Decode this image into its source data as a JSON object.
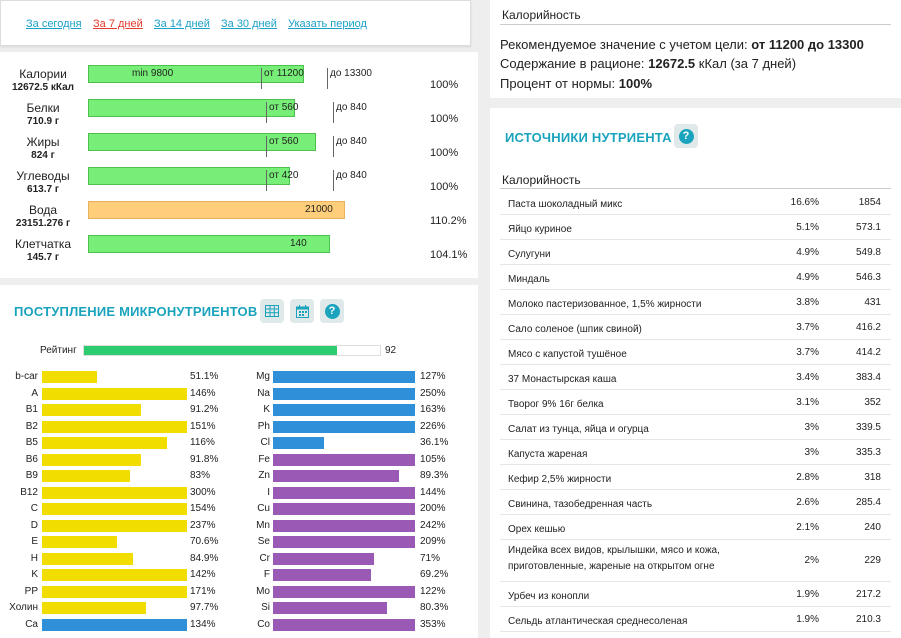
{
  "period": {
    "tabs": [
      {
        "label": "За сегодня",
        "active": false
      },
      {
        "label": "За 7 дней",
        "active": true
      },
      {
        "label": "За 14 дней",
        "active": false
      },
      {
        "label": "За 30 дней",
        "active": false
      },
      {
        "label": "Указать период",
        "active": false
      }
    ]
  },
  "macros": [
    {
      "name": "Калории",
      "value": "12672.5 кКал",
      "labels": [
        "min 9800",
        "от 11200",
        "до 13300"
      ],
      "pct": "100%",
      "fill_ratio": 0.74,
      "color": "#77ee77"
    },
    {
      "name": "Белки",
      "value": "710.9 г",
      "labels": [
        "от 560",
        "до 840"
      ],
      "pct": "100%",
      "fill_ratio": 0.71,
      "color": "#77ee77"
    },
    {
      "name": "Жиры",
      "value": "824 г",
      "labels": [
        "от 560",
        "до 840"
      ],
      "pct": "100%",
      "fill_ratio": 0.78,
      "color": "#77ee77"
    },
    {
      "name": "Углеводы",
      "value": "613.7 г",
      "labels": [
        "от 420",
        "до 840"
      ],
      "pct": "100%",
      "fill_ratio": 0.69,
      "color": "#77ee77"
    },
    {
      "name": "Вода",
      "value": "23151.276 г",
      "labels": [
        "21000"
      ],
      "pct": "110.2%",
      "fill_ratio": 0.88,
      "color": "#ffce7a"
    },
    {
      "name": "Клетчатка",
      "value": "145.7 г",
      "labels": [
        "140"
      ],
      "pct": "104.1%",
      "fill_ratio": 0.83,
      "color": "#77ee77"
    }
  ],
  "micro": {
    "title": "ПОСТУПЛЕНИЕ МИКРОНУТРИЕНТОВ",
    "icons": [
      "table-icon",
      "calendar-icon",
      "help-icon"
    ],
    "rating": {
      "label": "Рейтинг",
      "value": "92",
      "fraction": 0.92
    },
    "left": [
      {
        "name": "b-car",
        "pct": "51.1%",
        "fraction": 0.38,
        "color": "#f2dd00"
      },
      {
        "name": "A",
        "pct": "146%",
        "fraction": 1.0,
        "color": "#f2dd00"
      },
      {
        "name": "B1",
        "pct": "91.2%",
        "fraction": 0.68,
        "color": "#f2dd00"
      },
      {
        "name": "B2",
        "pct": "151%",
        "fraction": 1.0,
        "color": "#f2dd00"
      },
      {
        "name": "B5",
        "pct": "116%",
        "fraction": 0.86,
        "color": "#f2dd00"
      },
      {
        "name": "B6",
        "pct": "91.8%",
        "fraction": 0.68,
        "color": "#f2dd00"
      },
      {
        "name": "B9",
        "pct": "83%",
        "fraction": 0.61,
        "color": "#f2dd00"
      },
      {
        "name": "B12",
        "pct": "300%",
        "fraction": 1.0,
        "color": "#f2dd00"
      },
      {
        "name": "C",
        "pct": "154%",
        "fraction": 1.0,
        "color": "#f2dd00"
      },
      {
        "name": "D",
        "pct": "237%",
        "fraction": 1.0,
        "color": "#f2dd00"
      },
      {
        "name": "E",
        "pct": "70.6%",
        "fraction": 0.52,
        "color": "#f2dd00"
      },
      {
        "name": "H",
        "pct": "84.9%",
        "fraction": 0.63,
        "color": "#f2dd00"
      },
      {
        "name": "K",
        "pct": "142%",
        "fraction": 1.0,
        "color": "#f2dd00"
      },
      {
        "name": "PP",
        "pct": "171%",
        "fraction": 1.0,
        "color": "#f2dd00"
      },
      {
        "name": "Холин",
        "pct": "97.7%",
        "fraction": 0.72,
        "color": "#f2dd00"
      },
      {
        "name": "Ca",
        "pct": "134%",
        "fraction": 1.0,
        "color": "#2f8fd8"
      }
    ],
    "right": [
      {
        "name": "Mg",
        "pct": "127%",
        "fraction": 1.0,
        "color": "#2f8fd8"
      },
      {
        "name": "Na",
        "pct": "250%",
        "fraction": 1.0,
        "color": "#2f8fd8"
      },
      {
        "name": "K",
        "pct": "163%",
        "fraction": 1.0,
        "color": "#2f8fd8"
      },
      {
        "name": "Ph",
        "pct": "226%",
        "fraction": 1.0,
        "color": "#2f8fd8"
      },
      {
        "name": "Cl",
        "pct": "36.1%",
        "fraction": 0.36,
        "color": "#2f8fd8"
      },
      {
        "name": "Fe",
        "pct": "105%",
        "fraction": 1.0,
        "color": "#9b59b6"
      },
      {
        "name": "Zn",
        "pct": "89.3%",
        "fraction": 0.89,
        "color": "#9b59b6"
      },
      {
        "name": "I",
        "pct": "144%",
        "fraction": 1.0,
        "color": "#9b59b6"
      },
      {
        "name": "Cu",
        "pct": "200%",
        "fraction": 1.0,
        "color": "#9b59b6"
      },
      {
        "name": "Mn",
        "pct": "242%",
        "fraction": 1.0,
        "color": "#9b59b6"
      },
      {
        "name": "Se",
        "pct": "209%",
        "fraction": 1.0,
        "color": "#9b59b6"
      },
      {
        "name": "Cr",
        "pct": "71%",
        "fraction": 0.71,
        "color": "#9b59b6"
      },
      {
        "name": "F",
        "pct": "69.2%",
        "fraction": 0.69,
        "color": "#9b59b6"
      },
      {
        "name": "Mo",
        "pct": "122%",
        "fraction": 1.0,
        "color": "#9b59b6"
      },
      {
        "name": "Si",
        "pct": "80.3%",
        "fraction": 0.8,
        "color": "#9b59b6"
      },
      {
        "name": "Co",
        "pct": "353%",
        "fraction": 1.0,
        "color": "#9b59b6"
      }
    ]
  },
  "calories": {
    "title": "Калорийность",
    "rec_label": "Рекомендуемое значение с учетом цели:",
    "rec_value": "от 11200 до 13300",
    "content_label": "Содержание в рационе:",
    "content_value": "12672.5",
    "content_suffix": "кКал (за 7 дней)",
    "pct_label": "Процент от нормы:",
    "pct_value": "100%"
  },
  "sources": {
    "title": "ИСТОЧНИКИ НУТРИЕНТА",
    "subtitle": "Калорийность",
    "rows": [
      {
        "name": "Паста шоколадный микс",
        "pct": "16.6%",
        "kcal": "1854"
      },
      {
        "name": "Яйцо куриное",
        "pct": "5.1%",
        "kcal": "573.1"
      },
      {
        "name": "Сулугуни",
        "pct": "4.9%",
        "kcal": "549.8"
      },
      {
        "name": "Миндаль",
        "pct": "4.9%",
        "kcal": "546.3"
      },
      {
        "name": "Молоко пастеризованное, 1,5% жирности",
        "pct": "3.8%",
        "kcal": "431"
      },
      {
        "name": "Сало соленое (шпик свиной)",
        "pct": "3.7%",
        "kcal": "416.2"
      },
      {
        "name": "Мясо с капустой тушёное",
        "pct": "3.7%",
        "kcal": "414.2"
      },
      {
        "name": "37 Монастырская каша",
        "pct": "3.4%",
        "kcal": "383.4"
      },
      {
        "name": "Творог 9% 16г белка",
        "pct": "3.1%",
        "kcal": "352"
      },
      {
        "name": "Салат из тунца, яйца и огурца",
        "pct": "3%",
        "kcal": "339.5"
      },
      {
        "name": "Капуста жареная",
        "pct": "3%",
        "kcal": "335.3"
      },
      {
        "name": "Кефир 2,5% жирности",
        "pct": "2.8%",
        "kcal": "318"
      },
      {
        "name": "Свинина, тазобедренная часть",
        "pct": "2.6%",
        "kcal": "285.4"
      },
      {
        "name": "Орех кешью",
        "pct": "2.1%",
        "kcal": "240"
      },
      {
        "name": "Индейка всех видов, крылышки, мясо и кожа, приготовленные, жареные на открытом огне",
        "pct": "2%",
        "kcal": "229"
      },
      {
        "name": "Урбеч из конопли",
        "pct": "1.9%",
        "kcal": "217.2"
      },
      {
        "name": "Сельдь атлантическая среднесоленая",
        "pct": "1.9%",
        "kcal": "210.3"
      }
    ]
  }
}
